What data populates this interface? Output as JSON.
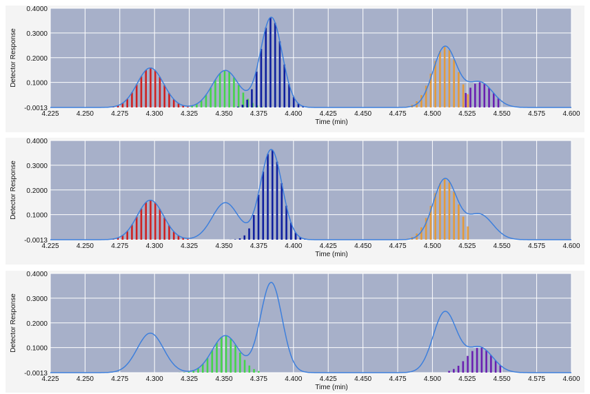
{
  "chart_data": [
    {
      "type": "line",
      "title": "",
      "xlabel": "Time (min)",
      "ylabel": "Detector Response",
      "xlim": [
        4.225,
        4.6
      ],
      "ylim": [
        -0.0013,
        0.4
      ],
      "x_ticks": [
        "4.225",
        "4.250",
        "4.275",
        "4.300",
        "4.325",
        "4.350",
        "4.375",
        "4.400",
        "4.425",
        "4.450",
        "4.475",
        "4.500",
        "4.525",
        "4.550",
        "4.575",
        "4.600"
      ],
      "y_ticks": [
        "0.4000",
        "0.3000",
        "0.2000",
        "0.1000",
        "-0.0013"
      ],
      "grid": true,
      "colors": {
        "trace": "#3d7fdc",
        "red": "#cf2020",
        "green": "#45d44a",
        "blue": "#0f1f9e",
        "orange": "#e49a3a",
        "purple": "#6a1fb0"
      },
      "trace_peaks": [
        {
          "center": 4.297,
          "height": 0.16
        },
        {
          "center": 4.351,
          "height": 0.15
        },
        {
          "center": 4.384,
          "height": 0.365
        },
        {
          "center": 4.509,
          "height": 0.245
        },
        {
          "center": 4.534,
          "height": 0.102
        }
      ],
      "stick_groups": [
        {
          "color": "red",
          "x_start": 4.267,
          "x_end": 4.324,
          "center": 4.297,
          "height": 0.16
        },
        {
          "color": "green",
          "x_start": 4.327,
          "x_end": 4.382,
          "center": 4.351,
          "height": 0.15
        },
        {
          "color": "blue",
          "x_start": 4.36,
          "x_end": 4.409,
          "center": 4.384,
          "height": 0.365
        },
        {
          "color": "orange",
          "x_start": 4.482,
          "x_end": 4.527,
          "center": 4.509,
          "height": 0.245
        },
        {
          "color": "purple",
          "x_start": 4.524,
          "x_end": 4.548,
          "center": 4.534,
          "height": 0.102
        }
      ]
    },
    {
      "type": "line",
      "title": "",
      "xlabel": "Time (min)",
      "ylabel": "Detector Response",
      "xlim": [
        4.225,
        4.6
      ],
      "ylim": [
        -0.0013,
        0.4
      ],
      "x_ticks": [
        "4.225",
        "4.250",
        "4.275",
        "4.300",
        "4.325",
        "4.350",
        "4.375",
        "4.400",
        "4.425",
        "4.450",
        "4.475",
        "4.500",
        "4.525",
        "4.550",
        "4.575",
        "4.600"
      ],
      "y_ticks": [
        "0.4000",
        "0.3000",
        "0.2000",
        "0.1000",
        "-0.0013"
      ],
      "grid": true,
      "colors": {
        "trace": "#3d7fdc",
        "red": "#cf2020",
        "blue": "#0f1f9e",
        "orange": "#e49a3a"
      },
      "trace_peaks": [
        {
          "center": 4.297,
          "height": 0.16
        },
        {
          "center": 4.351,
          "height": 0.15
        },
        {
          "center": 4.384,
          "height": 0.365
        },
        {
          "center": 4.509,
          "height": 0.245
        },
        {
          "center": 4.534,
          "height": 0.102
        }
      ],
      "stick_groups": [
        {
          "color": "red",
          "x_start": 4.267,
          "x_end": 4.324,
          "center": 4.297,
          "height": 0.16
        },
        {
          "color": "blue",
          "x_start": 4.348,
          "x_end": 4.409,
          "center": 4.384,
          "height": 0.365
        },
        {
          "color": "orange",
          "x_start": 4.482,
          "x_end": 4.527,
          "center": 4.509,
          "height": 0.245
        }
      ]
    },
    {
      "type": "line",
      "title": "",
      "xlabel": "Time (min)",
      "ylabel": "Detector Response",
      "xlim": [
        4.225,
        4.6
      ],
      "ylim": [
        -0.0013,
        0.4
      ],
      "x_ticks": [
        "4.225",
        "4.250",
        "4.275",
        "4.300",
        "4.325",
        "4.350",
        "4.375",
        "4.400",
        "4.425",
        "4.450",
        "4.475",
        "4.500",
        "4.525",
        "4.550",
        "4.575",
        "4.600"
      ],
      "y_ticks": [
        "0.4000",
        "0.3000",
        "0.2000",
        "0.1000",
        "-0.0013"
      ],
      "grid": true,
      "colors": {
        "trace": "#3d7fdc",
        "green": "#45d44a",
        "purple": "#6a1fb0"
      },
      "trace_peaks": [
        {
          "center": 4.297,
          "height": 0.16
        },
        {
          "center": 4.351,
          "height": 0.15
        },
        {
          "center": 4.384,
          "height": 0.365
        },
        {
          "center": 4.509,
          "height": 0.245
        },
        {
          "center": 4.534,
          "height": 0.102
        }
      ],
      "stick_groups": [
        {
          "color": "green",
          "x_start": 4.318,
          "x_end": 4.378,
          "center": 4.351,
          "height": 0.15
        },
        {
          "color": "purple",
          "x_start": 4.512,
          "x_end": 4.55,
          "center": 4.534,
          "height": 0.102
        }
      ]
    }
  ]
}
